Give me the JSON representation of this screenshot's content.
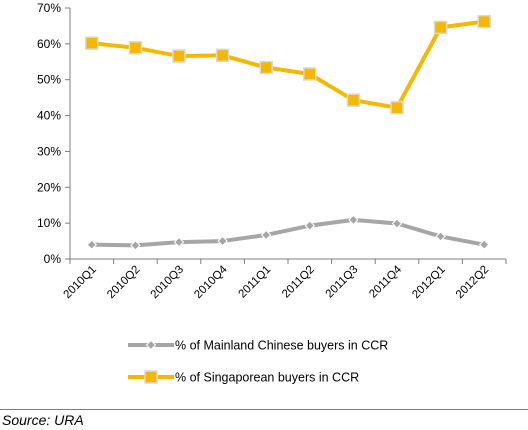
{
  "chart_data": {
    "type": "line",
    "categories": [
      "2010Q1",
      "2010Q2",
      "2010Q3",
      "2010Q4",
      "2011Q1",
      "2011Q2",
      "2011Q3",
      "2011Q4",
      "2012Q1",
      "2012Q2"
    ],
    "series": [
      {
        "name": "% of Mainland Chinese buyers in CCR",
        "color": "#a6a6a6",
        "marker": "diamond",
        "values": [
          4.0,
          3.8,
          4.7,
          5.0,
          6.7,
          9.3,
          10.9,
          9.9,
          6.3,
          4.0
        ]
      },
      {
        "name": "% of Singaporean buyers in CCR",
        "color": "#f5b800",
        "marker": "square",
        "values": [
          60.2,
          58.9,
          56.6,
          56.8,
          53.4,
          51.6,
          44.3,
          42.2,
          64.6,
          66.2
        ]
      }
    ],
    "yticks": [
      "0%",
      "10%",
      "20%",
      "30%",
      "40%",
      "50%",
      "60%",
      "70%"
    ],
    "ylim": [
      0,
      70
    ],
    "grid": false,
    "legend_position": "bottom"
  },
  "source": "Source: URA"
}
